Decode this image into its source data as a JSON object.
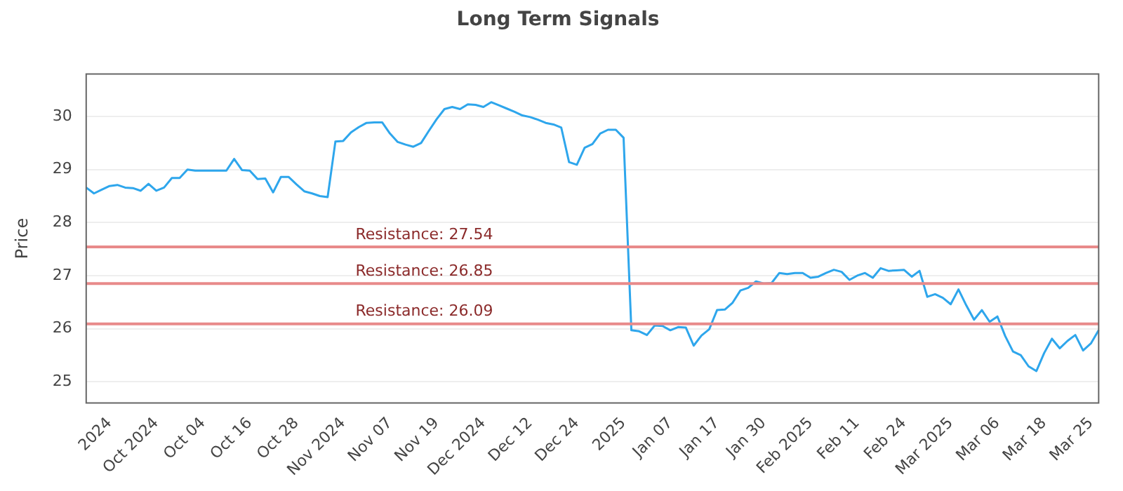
{
  "chart_data": {
    "type": "line",
    "title": "Long Term Signals",
    "ylabel": "Price",
    "categories": [
      null,
      null,
      null,
      "2024",
      null,
      null,
      null,
      null,
      null,
      "Oct 2024",
      null,
      null,
      null,
      null,
      null,
      "Oct 04",
      null,
      null,
      null,
      null,
      null,
      "Oct 16",
      null,
      null,
      null,
      null,
      null,
      "Oct 28",
      null,
      null,
      null,
      null,
      null,
      "Nov 2024",
      null,
      null,
      null,
      null,
      null,
      "Nov 07",
      null,
      null,
      null,
      null,
      null,
      "Nov 19",
      null,
      null,
      null,
      null,
      null,
      "Dec 2024",
      null,
      null,
      null,
      null,
      null,
      "Dec 12",
      null,
      null,
      null,
      null,
      null,
      "Dec 24",
      null,
      null,
      null,
      null,
      null,
      "2025",
      null,
      null,
      null,
      null,
      null,
      "Jan 07",
      null,
      null,
      null,
      null,
      null,
      "Jan 17",
      null,
      null,
      null,
      null,
      null,
      "Jan 30",
      null,
      null,
      null,
      null,
      null,
      "Feb 2025",
      null,
      null,
      null,
      null,
      null,
      "Feb 11",
      null,
      null,
      null,
      null,
      null,
      "Feb 24",
      null,
      null,
      null,
      null,
      null,
      "Mar 2025",
      null,
      null,
      null,
      null,
      null,
      "Mar 06",
      null,
      null,
      null,
      null,
      null,
      "Mar 18",
      null,
      null,
      null,
      null,
      null,
      "Mar 25",
      null
    ],
    "series": [
      {
        "color": "#2ea6ec",
        "values": [
          28.66,
          28.55,
          28.62,
          28.69,
          28.71,
          28.66,
          28.65,
          28.6,
          28.73,
          28.6,
          28.66,
          28.84,
          28.84,
          29.0,
          28.98,
          28.98,
          28.98,
          28.98,
          28.98,
          29.2,
          28.99,
          28.98,
          28.82,
          28.83,
          28.57,
          28.86,
          28.86,
          28.72,
          28.59,
          28.55,
          28.5,
          28.48,
          29.53,
          29.54,
          29.7,
          29.8,
          29.88,
          29.89,
          29.89,
          29.68,
          29.52,
          29.47,
          29.43,
          29.5,
          29.73,
          29.95,
          30.14,
          30.18,
          30.14,
          30.23,
          30.22,
          30.18,
          30.27,
          30.21,
          30.15,
          30.09,
          30.02,
          29.99,
          29.94,
          29.88,
          29.85,
          29.79,
          29.14,
          29.09,
          29.41,
          29.48,
          29.68,
          29.75,
          29.75,
          29.6,
          25.97,
          25.95,
          25.88,
          26.06,
          26.05,
          25.97,
          26.03,
          26.02,
          25.68,
          25.87,
          25.99,
          26.35,
          26.36,
          26.49,
          26.72,
          26.77,
          26.89,
          26.85,
          26.86,
          27.05,
          27.03,
          27.05,
          27.05,
          26.96,
          26.98,
          27.05,
          27.11,
          27.07,
          26.92,
          27.0,
          27.05,
          26.96,
          27.14,
          27.09,
          27.1,
          27.11,
          26.98,
          27.09,
          26.6,
          26.65,
          26.58,
          26.46,
          26.74,
          26.44,
          26.17,
          26.35,
          26.13,
          26.23,
          25.86,
          25.57,
          25.5,
          25.29,
          25.2,
          25.54,
          25.81,
          25.63,
          25.77,
          25.88,
          25.59,
          25.72,
          25.97
        ]
      }
    ],
    "ylim": [
      24.6,
      30.8
    ],
    "yticks": [
      25,
      26,
      27,
      28,
      29,
      30
    ],
    "grid": "y",
    "marker": "none",
    "line_style": "solid",
    "ref_lines": [
      {
        "axis": "y",
        "value": 27.54,
        "label": "Resistance: 27.54",
        "color": "#e88a8a"
      },
      {
        "axis": "y",
        "value": 26.85,
        "label": "Resistance: 26.85",
        "color": "#e88a8a"
      },
      {
        "axis": "y",
        "value": 26.09,
        "label": "Resistance: 26.09",
        "color": "#e88a8a"
      }
    ]
  }
}
